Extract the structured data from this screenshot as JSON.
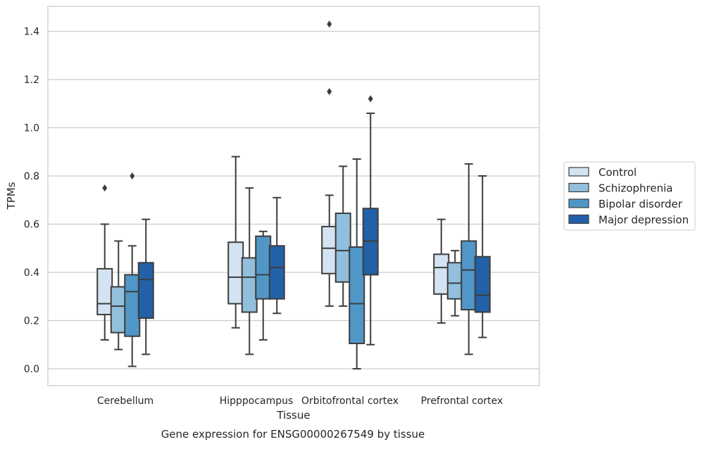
{
  "chart_data": {
    "type": "boxplot",
    "xlabel": "Tissue",
    "ylabel": "TPMs",
    "caption": "Gene expression for ENSG00000267549 by tissue",
    "ylim": [
      -0.07,
      1.5
    ],
    "yticks": [
      "0.0",
      "0.2",
      "0.4",
      "0.6",
      "0.8",
      "1.0",
      "1.2",
      "1.4"
    ],
    "grid": true,
    "legend_position": "right",
    "categories": [
      "Cerebellum",
      "Hipppocampus",
      "Orbitofrontal cortex",
      "Prefrontal cortex"
    ],
    "series": [
      {
        "name": "Control",
        "color": "#d3e3f2",
        "boxes": [
          {
            "whislo": 0.12,
            "q1": 0.225,
            "med": 0.27,
            "q3": 0.415,
            "whishi": 0.6,
            "fliers": [
              0.75
            ]
          },
          {
            "whislo": 0.17,
            "q1": 0.27,
            "med": 0.38,
            "q3": 0.525,
            "whishi": 0.88,
            "fliers": []
          },
          {
            "whislo": 0.26,
            "q1": 0.395,
            "med": 0.5,
            "q3": 0.59,
            "whishi": 0.72,
            "fliers": [
              1.15,
              1.43
            ]
          },
          {
            "whislo": 0.19,
            "q1": 0.31,
            "med": 0.42,
            "q3": 0.475,
            "whishi": 0.62,
            "fliers": []
          }
        ]
      },
      {
        "name": "Schizophrenia",
        "color": "#92bfdb",
        "boxes": [
          {
            "whislo": 0.08,
            "q1": 0.15,
            "med": 0.26,
            "q3": 0.34,
            "whishi": 0.53,
            "fliers": []
          },
          {
            "whislo": 0.06,
            "q1": 0.235,
            "med": 0.38,
            "q3": 0.46,
            "whishi": 0.75,
            "fliers": []
          },
          {
            "whislo": 0.26,
            "q1": 0.36,
            "med": 0.49,
            "q3": 0.645,
            "whishi": 0.84,
            "fliers": []
          },
          {
            "whislo": 0.22,
            "q1": 0.29,
            "med": 0.355,
            "q3": 0.44,
            "whishi": 0.49,
            "fliers": []
          }
        ]
      },
      {
        "name": "Bipolar disorder",
        "color": "#5097c7",
        "boxes": [
          {
            "whislo": 0.01,
            "q1": 0.135,
            "med": 0.32,
            "q3": 0.39,
            "whishi": 0.51,
            "fliers": [
              0.8
            ]
          },
          {
            "whislo": 0.12,
            "q1": 0.29,
            "med": 0.39,
            "q3": 0.55,
            "whishi": 0.57,
            "fliers": []
          },
          {
            "whislo": 0.0,
            "q1": 0.105,
            "med": 0.27,
            "q3": 0.505,
            "whishi": 0.87,
            "fliers": []
          },
          {
            "whislo": 0.06,
            "q1": 0.245,
            "med": 0.41,
            "q3": 0.53,
            "whishi": 0.85,
            "fliers": []
          }
        ]
      },
      {
        "name": "Major depression",
        "color": "#2261a7",
        "boxes": [
          {
            "whislo": 0.06,
            "q1": 0.21,
            "med": 0.37,
            "q3": 0.44,
            "whishi": 0.62,
            "fliers": []
          },
          {
            "whislo": 0.23,
            "q1": 0.29,
            "med": 0.42,
            "q3": 0.51,
            "whishi": 0.71,
            "fliers": []
          },
          {
            "whislo": 0.1,
            "q1": 0.39,
            "med": 0.53,
            "q3": 0.665,
            "whishi": 1.06,
            "fliers": [
              1.12
            ]
          },
          {
            "whislo": 0.13,
            "q1": 0.235,
            "med": 0.305,
            "q3": 0.465,
            "whishi": 0.8,
            "fliers": []
          }
        ]
      }
    ]
  }
}
